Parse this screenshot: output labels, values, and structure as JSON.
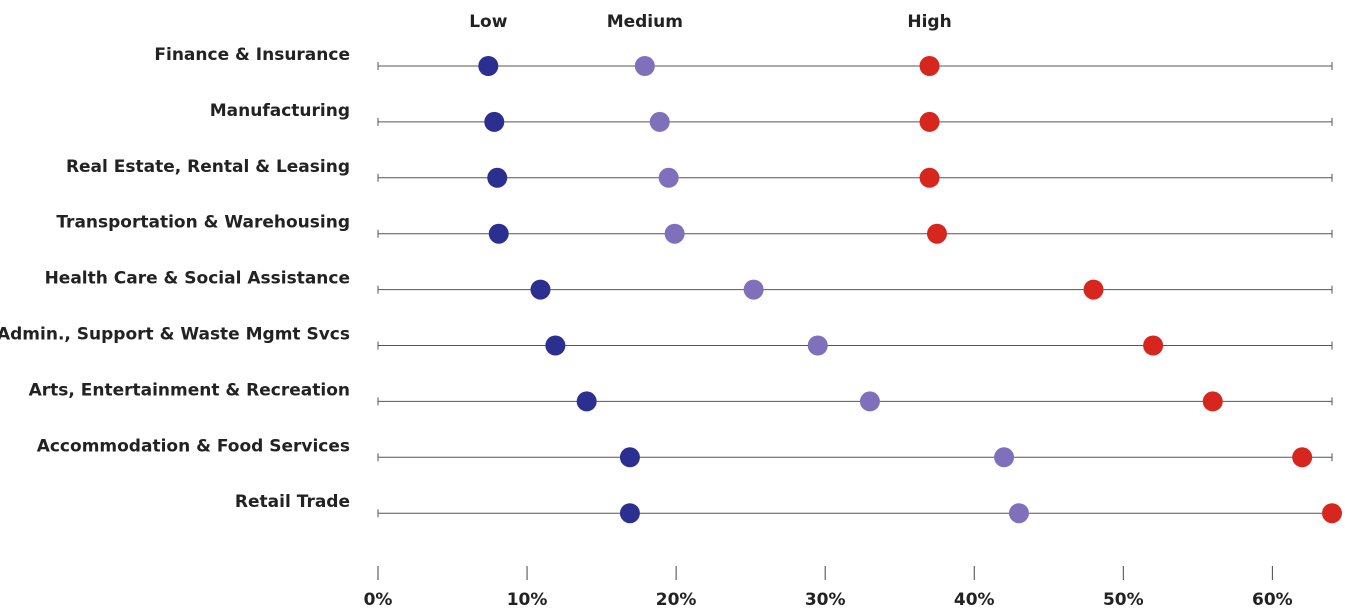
{
  "chart_data": {
    "type": "dot",
    "categories": [
      "Finance & Insurance",
      "Manufacturing",
      "Real Estate, Rental & Leasing",
      "Transportation & Warehousing",
      "Health Care & Social Assistance",
      "Admin., Support & Waste Mgmt Svcs",
      "Arts, Entertainment & Recreation",
      "Accommodation & Food Services",
      "Retail Trade"
    ],
    "series": [
      {
        "name": "Low",
        "color": "#2b2f8f",
        "values": [
          7.4,
          7.8,
          8.0,
          8.1,
          10.9,
          11.9,
          14.0,
          16.9,
          16.9
        ]
      },
      {
        "name": "Medium",
        "color": "#8070bb",
        "values": [
          17.9,
          18.9,
          19.5,
          19.9,
          25.2,
          29.5,
          33.0,
          42.0,
          43.0
        ]
      },
      {
        "name": "High",
        "color": "#d7261e",
        "values": [
          37.0,
          37.0,
          37.0,
          37.5,
          48.0,
          52.0,
          56.0,
          62.0,
          64.0
        ]
      }
    ],
    "xlim": [
      0,
      64
    ],
    "xticks": [
      {
        "value": 0,
        "label": "0%"
      },
      {
        "value": 10,
        "label": "10%"
      },
      {
        "value": 20,
        "label": "20%"
      },
      {
        "value": 30,
        "label": "30%"
      },
      {
        "value": 40,
        "label": "40%"
      },
      {
        "value": 50,
        "label": "50%"
      },
      {
        "value": 60,
        "label": "60%"
      }
    ]
  }
}
